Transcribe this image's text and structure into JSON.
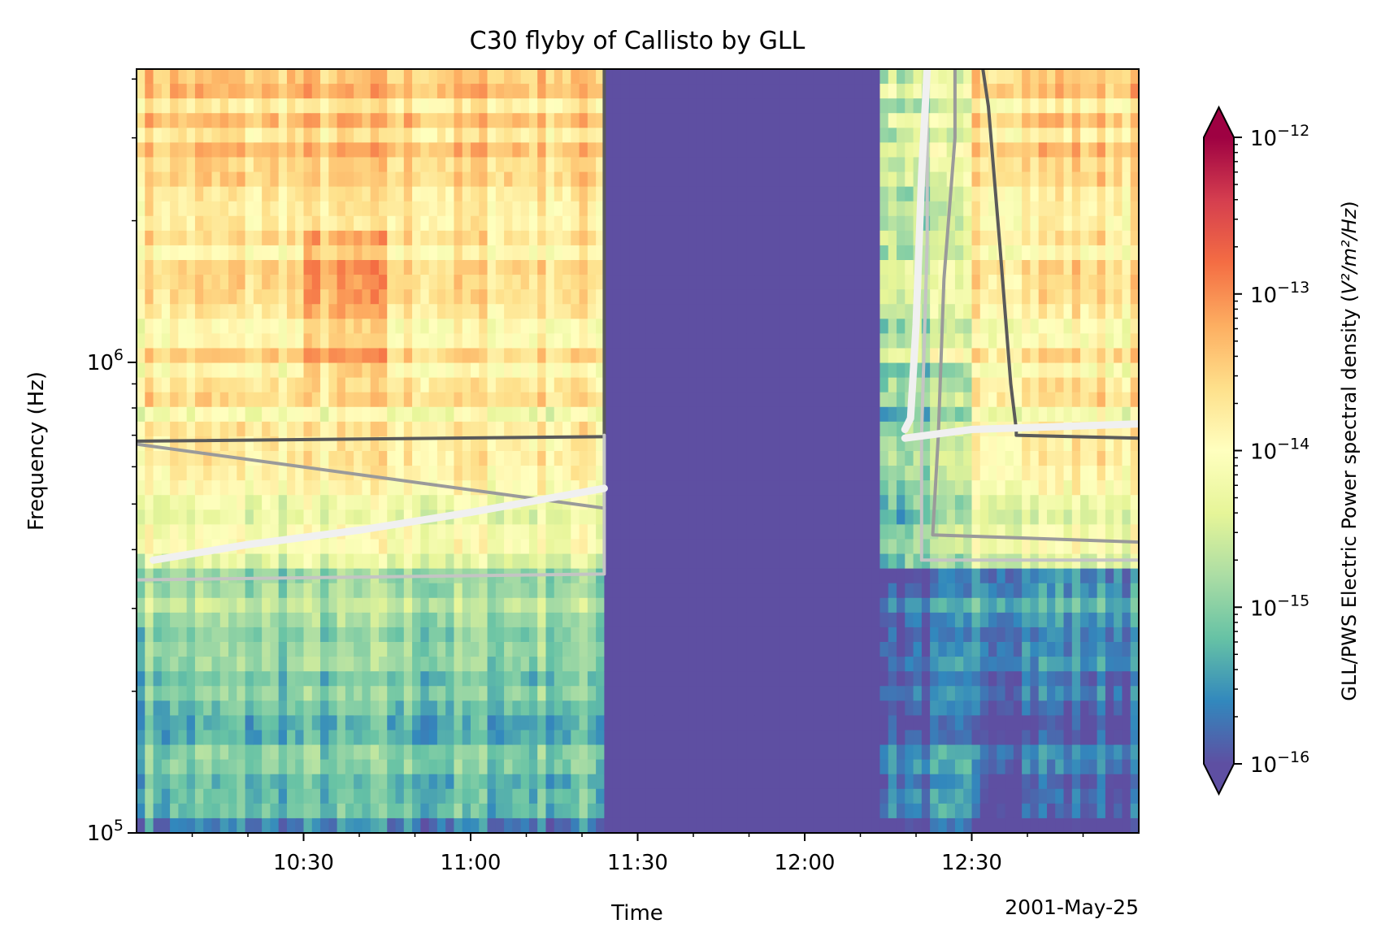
{
  "chart_data": {
    "type": "heatmap",
    "title": "C30 flyby of Callisto by GLL",
    "xlabel": "Time",
    "ylabel": "Frequency (Hz)",
    "date_label": "2001-May-25",
    "x_ticks": [
      "10:30",
      "11:00",
      "11:30",
      "12:00",
      "12:30"
    ],
    "x_tick_minutes": [
      630,
      660,
      690,
      720,
      750
    ],
    "xlim_minutes": [
      600,
      780
    ],
    "y_scale": "log",
    "ylim": [
      100000,
      4200000
    ],
    "y_ticks": [
      {
        "value": 100000,
        "base": "10",
        "exp": "5"
      },
      {
        "value": 1000000,
        "base": "10",
        "exp": "6"
      }
    ],
    "colorbar": {
      "label_main": "GLL/PWS Electric Power spectral density (",
      "label_unit": "V²/m²/Hz",
      "label_close": ")",
      "scale": "log",
      "range": [
        1e-16,
        1e-12
      ],
      "ticks": [
        {
          "value": 1e-12,
          "base": "10",
          "exp": "−12"
        },
        {
          "value": 1e-13,
          "base": "10",
          "exp": "−13"
        },
        {
          "value": 1e-14,
          "base": "10",
          "exp": "−14"
        },
        {
          "value": 1e-15,
          "base": "10",
          "exp": "−15"
        },
        {
          "value": 1e-16,
          "base": "10",
          "exp": "−16"
        }
      ],
      "extend": "both",
      "colormap": [
        "#5e4fa2",
        "#3288bd",
        "#66c2a5",
        "#abdda4",
        "#e6f598",
        "#ffffbf",
        "#fee08b",
        "#fdae61",
        "#f46d43",
        "#d53e4f",
        "#9e0142"
      ]
    },
    "series": [
      {
        "color": "#5a5a5a",
        "points": [
          [
            600,
            680000
          ],
          [
            684,
            695000
          ]
        ]
      },
      {
        "color": "#5a5a5a",
        "points": [
          [
            684,
            695000
          ],
          [
            684,
            4200000
          ]
        ]
      },
      {
        "color": "#5a5a5a",
        "points": [
          [
            752,
            4200000
          ],
          [
            753,
            3500000
          ],
          [
            755,
            1800000
          ],
          [
            757,
            900000
          ],
          [
            758,
            720000
          ],
          [
            758,
            700000
          ],
          [
            780,
            690000
          ]
        ]
      },
      {
        "color": "#9a9a9a",
        "points": [
          [
            600,
            670000
          ],
          [
            684,
            490000
          ]
        ]
      },
      {
        "color": "#9a9a9a",
        "points": [
          [
            747,
            4200000
          ],
          [
            747,
            3000000
          ],
          [
            745,
            1500000
          ],
          [
            744,
            700000
          ],
          [
            743,
            430000
          ],
          [
            780,
            415000
          ]
        ]
      },
      {
        "color": "#c4c4c4",
        "points": [
          [
            600,
            345000
          ],
          [
            684,
            355000
          ],
          [
            684,
            700000
          ]
        ]
      },
      {
        "color": "#c4c4c4",
        "points": [
          [
            742,
            4200000
          ],
          [
            742,
            1800000
          ],
          [
            741,
            700000
          ],
          [
            741,
            380000
          ],
          [
            780,
            380000
          ]
        ]
      },
      {
        "color": "#f0f0f0",
        "points": [
          [
            742,
            4200000
          ],
          [
            741,
            2500000
          ],
          [
            740,
            1200000
          ],
          [
            739,
            760000
          ],
          [
            738,
            720000
          ]
        ]
      },
      {
        "color": "#f0f0f0",
        "points": [
          [
            603,
            380000
          ],
          [
            620,
            410000
          ],
          [
            640,
            440000
          ],
          [
            660,
            480000
          ],
          [
            684,
            540000
          ]
        ]
      },
      {
        "color": "#f0f0f0",
        "points": [
          [
            738,
            690000
          ],
          [
            750,
            720000
          ],
          [
            765,
            730000
          ],
          [
            780,
            740000
          ]
        ]
      }
    ]
  }
}
